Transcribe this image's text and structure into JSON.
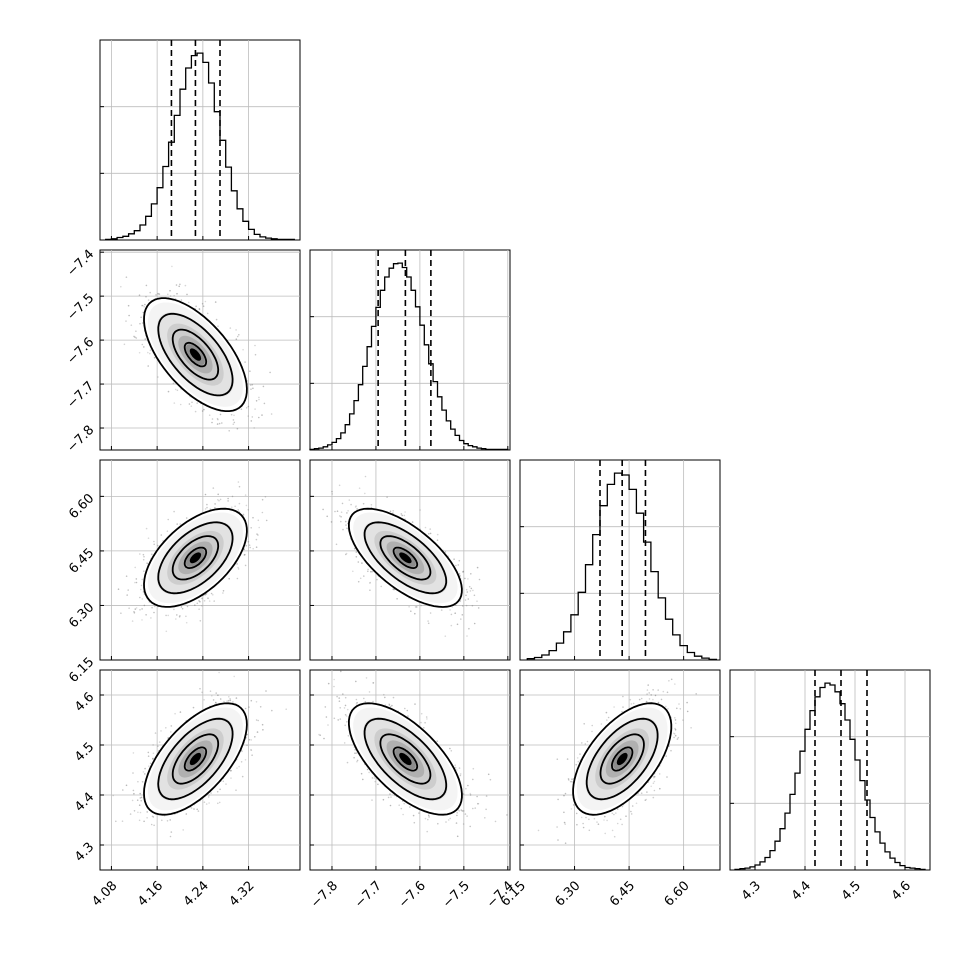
{
  "chart_data": {
    "type": "corner",
    "grid": true,
    "parameters": [
      {
        "index": 0,
        "range": [
          4.06,
          4.41
        ],
        "ticks": [
          4.08,
          4.16,
          4.24,
          4.32
        ],
        "tick_labels": [
          "4.08",
          "4.16",
          "4.24",
          "4.32"
        ]
      },
      {
        "index": 1,
        "range": [
          -7.85,
          -7.395
        ],
        "ticks": [
          -7.8,
          -7.7,
          -7.6,
          -7.5,
          -7.4
        ],
        "tick_labels": [
          "−7.8",
          "−7.7",
          "−7.6",
          "−7.5",
          "−7.4"
        ]
      },
      {
        "index": 2,
        "range": [
          6.15,
          6.7
        ],
        "ticks": [
          6.15,
          6.3,
          6.45,
          6.6
        ],
        "tick_labels": [
          "6.15",
          "6.30",
          "6.45",
          "6.60"
        ]
      },
      {
        "index": 3,
        "range": [
          4.25,
          4.65
        ],
        "ticks": [
          4.3,
          4.4,
          4.5,
          4.6
        ],
        "tick_labels": [
          "4.3",
          "4.4",
          "4.5",
          "4.6"
        ]
      }
    ],
    "marginals": [
      {
        "parameter": 0,
        "quantiles": [
          4.185,
          4.227,
          4.27
        ],
        "bin_edges": [
          4.07,
          4.08,
          4.09,
          4.1,
          4.11,
          4.12,
          4.13,
          4.14,
          4.15,
          4.16,
          4.17,
          4.18,
          4.19,
          4.2,
          4.21,
          4.22,
          4.23,
          4.24,
          4.25,
          4.26,
          4.27,
          4.28,
          4.29,
          4.3,
          4.31,
          4.32,
          4.33,
          4.34,
          4.35,
          4.36,
          4.37,
          4.38,
          4.39,
          4.4
        ],
        "counts": [
          1,
          2,
          4,
          6,
          10,
          15,
          24,
          38,
          58,
          84,
          118,
          157,
          200,
          242,
          276,
          296,
          300,
          285,
          252,
          206,
          160,
          117,
          79,
          50,
          30,
          17,
          9,
          5,
          3,
          2,
          1,
          1,
          1
        ]
      },
      {
        "parameter": 1,
        "quantiles": [
          -7.695,
          -7.633,
          -7.575
        ],
        "bin_edges": [
          -7.85,
          -7.84,
          -7.83,
          -7.82,
          -7.81,
          -7.8,
          -7.79,
          -7.78,
          -7.77,
          -7.76,
          -7.75,
          -7.74,
          -7.73,
          -7.72,
          -7.71,
          -7.7,
          -7.69,
          -7.68,
          -7.67,
          -7.66,
          -7.65,
          -7.64,
          -7.63,
          -7.62,
          -7.61,
          -7.6,
          -7.59,
          -7.58,
          -7.57,
          -7.56,
          -7.55,
          -7.54,
          -7.53,
          -7.52,
          -7.51,
          -7.5,
          -7.49,
          -7.48,
          -7.47,
          -7.46,
          -7.45,
          -7.44,
          -7.43,
          -7.42,
          -7.41,
          -7.4
        ],
        "counts": [
          1,
          2,
          3,
          5,
          8,
          12,
          18,
          27,
          40,
          57,
          78,
          103,
          132,
          163,
          195,
          225,
          252,
          273,
          287,
          294,
          295,
          288,
          273,
          252,
          226,
          197,
          166,
          136,
          108,
          84,
          63,
          46,
          33,
          23,
          15,
          10,
          7,
          5,
          3,
          2,
          1,
          1,
          1,
          1,
          1
        ]
      },
      {
        "parameter": 2,
        "quantiles": [
          6.37,
          6.431,
          6.495
        ],
        "bin_edges": [
          6.17,
          6.19,
          6.21,
          6.23,
          6.25,
          6.27,
          6.29,
          6.31,
          6.33,
          6.35,
          6.37,
          6.39,
          6.41,
          6.43,
          6.45,
          6.47,
          6.49,
          6.51,
          6.53,
          6.55,
          6.57,
          6.59,
          6.61,
          6.63,
          6.65,
          6.67,
          6.69
        ],
        "counts": [
          2,
          4,
          8,
          15,
          27,
          45,
          72,
          108,
          152,
          200,
          246,
          280,
          298,
          295,
          272,
          234,
          188,
          141,
          99,
          65,
          40,
          23,
          12,
          6,
          3,
          1
        ]
      },
      {
        "parameter": 3,
        "quantiles": [
          4.42,
          4.472,
          4.524
        ],
        "bin_edges": [
          4.26,
          4.27,
          4.28,
          4.29,
          4.3,
          4.31,
          4.32,
          4.33,
          4.34,
          4.35,
          4.36,
          4.37,
          4.38,
          4.39,
          4.4,
          4.41,
          4.42,
          4.43,
          4.44,
          4.45,
          4.46,
          4.47,
          4.48,
          4.49,
          4.5,
          4.51,
          4.52,
          4.53,
          4.54,
          4.55,
          4.56,
          4.57,
          4.58,
          4.59,
          4.6,
          4.61,
          4.62,
          4.63,
          4.64
        ],
        "counts": [
          1,
          2,
          3,
          5,
          8,
          13,
          20,
          31,
          46,
          66,
          91,
          121,
          155,
          190,
          225,
          255,
          277,
          292,
          299,
          296,
          285,
          266,
          240,
          209,
          176,
          143,
          112,
          84,
          61,
          43,
          29,
          19,
          12,
          7,
          4,
          3,
          2,
          1
        ]
      }
    ],
    "pairs": [
      {
        "x_param": 0,
        "y_param": 1,
        "mean": [
          4.227,
          -7.633
        ],
        "std": [
          0.042,
          0.06
        ],
        "correlation": -0.62
      },
      {
        "x_param": 0,
        "y_param": 2,
        "mean": [
          4.227,
          6.431
        ],
        "std": [
          0.042,
          0.063
        ],
        "correlation": 0.55
      },
      {
        "x_param": 1,
        "y_param": 2,
        "mean": [
          -7.633,
          6.431
        ],
        "std": [
          0.06,
          0.063
        ],
        "correlation": -0.66
      },
      {
        "x_param": 0,
        "y_param": 3,
        "mean": [
          4.227,
          4.472
        ],
        "std": [
          0.042,
          0.052
        ],
        "correlation": 0.62
      },
      {
        "x_param": 1,
        "y_param": 3,
        "mean": [
          -7.633,
          4.472
        ],
        "std": [
          0.06,
          0.052
        ],
        "correlation": -0.65
      },
      {
        "x_param": 2,
        "y_param": 3,
        "mean": [
          6.431,
          4.472
        ],
        "std": [
          0.063,
          0.052
        ],
        "correlation": 0.58
      }
    ]
  }
}
